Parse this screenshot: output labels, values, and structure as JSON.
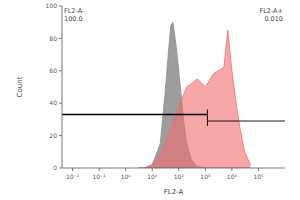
{
  "chart_data": {
    "type": "area",
    "x_label": "FL2-A",
    "y_label": "Count",
    "log": "x",
    "xlim": [
      0.004,
      1000000
    ],
    "xticks": [
      {
        "value": 0.01,
        "label": "10⁻²"
      },
      {
        "value": 0.1,
        "label": "10⁻¹"
      },
      {
        "value": 1,
        "label": "10⁰"
      },
      {
        "value": 10,
        "label": "10¹"
      },
      {
        "value": 100,
        "label": "10²"
      },
      {
        "value": 1000,
        "label": "10³"
      },
      {
        "value": 10000,
        "label": "10⁴"
      },
      {
        "value": 100000,
        "label": "10⁵"
      }
    ],
    "ylim": [
      0,
      100
    ],
    "yticks": [
      0,
      20,
      40,
      60,
      80,
      100
    ],
    "x": [
      3,
      5,
      10,
      20,
      30,
      40,
      50,
      60,
      80,
      100,
      150,
      200,
      300,
      500,
      1000,
      2000,
      3000,
      5000,
      7000,
      10000,
      15000,
      20000,
      30000,
      50000
    ],
    "series": [
      {
        "color": "#8c8c8c",
        "values": [
          0,
          0,
          2,
          15,
          45,
          70,
          88,
          90,
          75,
          60,
          30,
          15,
          5,
          1,
          0,
          0,
          0,
          0,
          0,
          0,
          0,
          0,
          0,
          0
        ]
      },
      {
        "color": "#f26d6d",
        "values": [
          0,
          0,
          2,
          8,
          15,
          20,
          25,
          28,
          33,
          38,
          45,
          50,
          52,
          55,
          50,
          58,
          60,
          62,
          85,
          60,
          38,
          25,
          10,
          2
        ]
      }
    ],
    "gates": [
      {
        "label": "FL2-A-",
        "value_label": "100.0",
        "x": [
          0.004,
          1200
        ],
        "y": 33
      },
      {
        "label": "FL2-A+",
        "value_label": "0.010",
        "x": [
          1200,
          1000000
        ],
        "y": 29
      }
    ]
  }
}
